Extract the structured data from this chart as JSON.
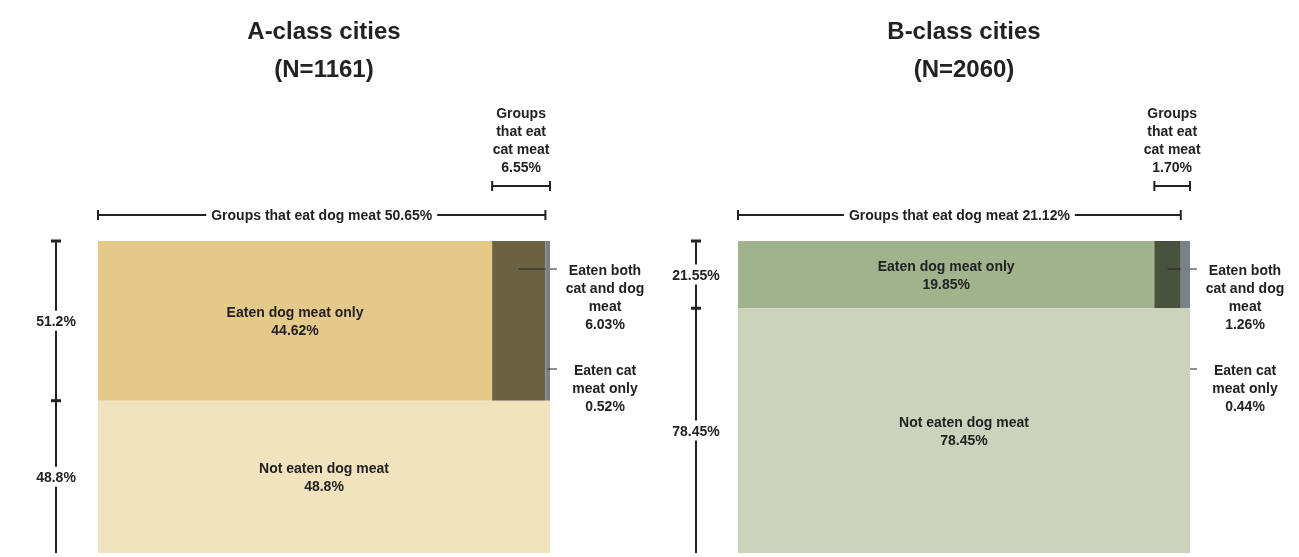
{
  "chart_data": [
    {
      "type": "other",
      "title": "A-class cities",
      "subtitle": "(N=1161)",
      "categories": [
        "Eaten dog meat only",
        "Eaten both cat and dog meat",
        "Eaten cat meat only",
        "Not eaten dog meat"
      ],
      "values": [
        44.62,
        6.03,
        0.52,
        48.8
      ],
      "value_labels": [
        "44.62%",
        "6.03%",
        "0.52%",
        "48.8%"
      ],
      "colors": [
        "#e5c98a",
        "#6b6242",
        "#7b7f87",
        "#f2e3bf"
      ],
      "annotations": [
        "Groups that eat dog meat 50.65%",
        "Groups that eat cat meat 6.55%",
        "51.2%",
        "48.8%"
      ]
    },
    {
      "type": "other",
      "title": "B-class cities",
      "subtitle": "(N=2060)",
      "categories": [
        "Eaten dog meat only",
        "Eaten both cat and dog meat",
        "Eaten cat meat only",
        "Not eaten dog meat"
      ],
      "values": [
        19.85,
        1.26,
        0.44,
        78.45
      ],
      "value_labels": [
        "19.85%",
        "1.26%",
        "0.44%",
        "78.45%"
      ],
      "colors": [
        "#a0b38c",
        "#48523f",
        "#7b7f87",
        "#ccd3bd"
      ],
      "annotations": [
        "Groups that eat dog meat 21.12%",
        "Groups that eat cat meat 1.70%",
        "21.55%",
        "78.45%"
      ]
    }
  ]
}
